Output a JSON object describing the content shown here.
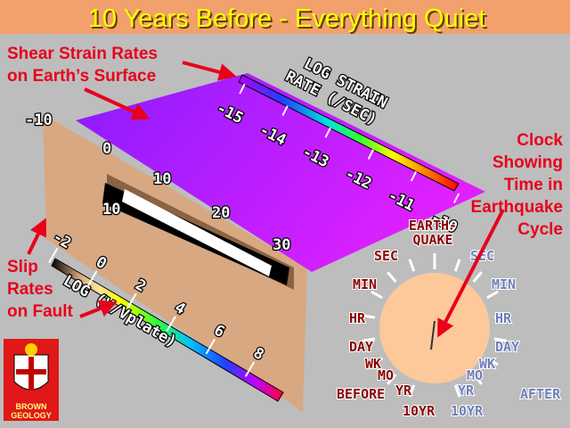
{
  "header": {
    "title": "10 Years Before - Everything Quiet"
  },
  "annotations": {
    "surface": [
      "Shear Strain Rates",
      "on Earth’s Surface"
    ],
    "fault": [
      "Slip",
      "Rates",
      "on Fault"
    ],
    "clock": [
      "Clock",
      "Showing",
      "Time in",
      "Earthquake",
      "Cycle"
    ]
  },
  "strain_colorbar": {
    "title": [
      "LOG STRAIN",
      "RATE (/SEC)"
    ],
    "ticks": [
      "-15",
      "-14",
      "-13",
      "-12",
      "-11",
      "-10"
    ]
  },
  "fault_axes": {
    "along_strike": [
      "-10",
      "0",
      "10",
      "20",
      "30"
    ],
    "depth": [
      "10"
    ]
  },
  "slip_colorbar": {
    "title": "LOG (V/Vplate)",
    "ticks": [
      "-2",
      "0",
      "2",
      "4",
      "6",
      "8"
    ]
  },
  "clock": {
    "top": [
      "EARTH-",
      "QUAKE"
    ],
    "before": [
      "SEC",
      "MIN",
      "HR",
      "DAY",
      "WK",
      "MO",
      "YR",
      "10YR",
      "BEFORE"
    ],
    "after": [
      "SEC",
      "MIN",
      "HR",
      "DAY",
      "WK",
      "MO",
      "YR",
      "10YR",
      "AFTER"
    ]
  },
  "logo": [
    "BROWN",
    "GEOLOGY"
  ]
}
